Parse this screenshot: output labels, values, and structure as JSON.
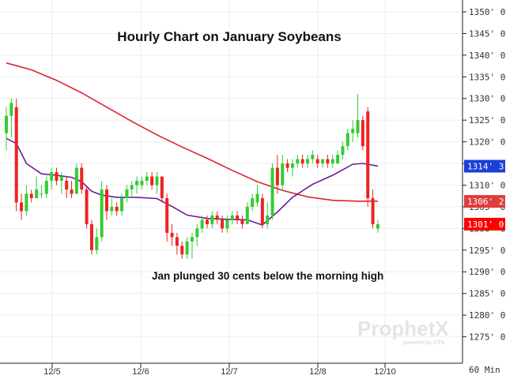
{
  "chart_data": {
    "type": "candlestick",
    "title": "Hourly Chart on January Soybeans",
    "annotation": "Jan plunged 30 cents below the morning high",
    "interval_label": "60 Min",
    "watermark": {
      "brand": "ProphetX",
      "sub": "powered by DTN"
    },
    "x_tick_labels": [
      "12/5",
      "12/6",
      "12/7",
      "12/8",
      "12/10"
    ],
    "y_axis": {
      "min": 1270,
      "max": 1352,
      "ticks": [
        {
          "value": 1350,
          "label": "1350' 0"
        },
        {
          "value": 1345,
          "label": "1345' 0"
        },
        {
          "value": 1340,
          "label": "1340' 0"
        },
        {
          "value": 1335,
          "label": "1335' 0"
        },
        {
          "value": 1330,
          "label": "1330' 0"
        },
        {
          "value": 1325,
          "label": "1325' 0"
        },
        {
          "value": 1320,
          "label": "1320' 0"
        },
        {
          "value": 1315,
          "label": "1315' 0"
        },
        {
          "value": 1310,
          "label": "1310' 0"
        },
        {
          "value": 1305,
          "label": "1305' 0"
        },
        {
          "value": 1300,
          "label": "1300' 0"
        },
        {
          "value": 1295,
          "label": "1295' 0"
        },
        {
          "value": 1290,
          "label": "1290' 0"
        },
        {
          "value": 1285,
          "label": "1285' 0"
        },
        {
          "value": 1280,
          "label": "1280' 0"
        },
        {
          "value": 1275,
          "label": "1275' 0"
        }
      ]
    },
    "price_badges": [
      {
        "label": "1314' 3",
        "value": 1314.375,
        "color": "#1a3fd6"
      },
      {
        "label": "1306' 2",
        "value": 1306.25,
        "color": "#e03c3c"
      },
      {
        "label": "1301' 0",
        "value": 1301.0,
        "color": "#ff0000"
      }
    ],
    "colors": {
      "up": "#33cc33",
      "down": "#ee2222",
      "ma_long": "#dd2233",
      "ma_short": "#6a1b9a"
    },
    "candles": [
      {
        "o": 1322,
        "h": 1328,
        "l": 1318,
        "c": 1326
      },
      {
        "o": 1326,
        "h": 1330,
        "l": 1321,
        "c": 1329
      },
      {
        "o": 1328,
        "h": 1330,
        "l": 1304,
        "c": 1306
      },
      {
        "o": 1306,
        "h": 1308,
        "l": 1302,
        "c": 1304
      },
      {
        "o": 1304,
        "h": 1310,
        "l": 1303,
        "c": 1308
      },
      {
        "o": 1308,
        "h": 1309,
        "l": 1306,
        "c": 1307
      },
      {
        "o": 1307,
        "h": 1312,
        "l": 1307,
        "c": 1309
      },
      {
        "o": 1308,
        "h": 1310,
        "l": 1307,
        "c": 1308
      },
      {
        "o": 1308,
        "h": 1312,
        "l": 1307,
        "c": 1311
      },
      {
        "o": 1311,
        "h": 1314,
        "l": 1309,
        "c": 1313
      },
      {
        "o": 1313,
        "h": 1314,
        "l": 1310,
        "c": 1311
      },
      {
        "o": 1311,
        "h": 1313,
        "l": 1308,
        "c": 1312
      },
      {
        "o": 1311,
        "h": 1312,
        "l": 1307,
        "c": 1309
      },
      {
        "o": 1309,
        "h": 1311,
        "l": 1307,
        "c": 1308
      },
      {
        "o": 1308,
        "h": 1315,
        "l": 1308,
        "c": 1314
      },
      {
        "o": 1314,
        "h": 1315,
        "l": 1308,
        "c": 1309
      },
      {
        "o": 1309,
        "h": 1310,
        "l": 1300,
        "c": 1301
      },
      {
        "o": 1301,
        "h": 1302,
        "l": 1294,
        "c": 1295
      },
      {
        "o": 1295,
        "h": 1300,
        "l": 1294,
        "c": 1298
      },
      {
        "o": 1298,
        "h": 1311,
        "l": 1297,
        "c": 1309
      },
      {
        "o": 1309,
        "h": 1310,
        "l": 1302,
        "c": 1304
      },
      {
        "o": 1304,
        "h": 1307,
        "l": 1303,
        "c": 1305
      },
      {
        "o": 1305,
        "h": 1306,
        "l": 1303,
        "c": 1304
      },
      {
        "o": 1304,
        "h": 1308,
        "l": 1303,
        "c": 1307
      },
      {
        "o": 1307,
        "h": 1310,
        "l": 1306,
        "c": 1309
      },
      {
        "o": 1309,
        "h": 1311,
        "l": 1307,
        "c": 1310
      },
      {
        "o": 1310,
        "h": 1312,
        "l": 1308,
        "c": 1311
      },
      {
        "o": 1310,
        "h": 1312,
        "l": 1309,
        "c": 1311
      },
      {
        "o": 1311,
        "h": 1313,
        "l": 1310,
        "c": 1312
      },
      {
        "o": 1312,
        "h": 1313,
        "l": 1309,
        "c": 1310
      },
      {
        "o": 1310,
        "h": 1313,
        "l": 1308,
        "c": 1312
      },
      {
        "o": 1312,
        "h": 1312,
        "l": 1306,
        "c": 1307
      },
      {
        "o": 1307,
        "h": 1308,
        "l": 1297,
        "c": 1299
      },
      {
        "o": 1299,
        "h": 1301,
        "l": 1296,
        "c": 1298
      },
      {
        "o": 1298,
        "h": 1299,
        "l": 1294,
        "c": 1296
      },
      {
        "o": 1296,
        "h": 1297,
        "l": 1293,
        "c": 1294
      },
      {
        "o": 1294,
        "h": 1298,
        "l": 1293,
        "c": 1297
      },
      {
        "o": 1297,
        "h": 1299,
        "l": 1293,
        "c": 1298
      },
      {
        "o": 1298,
        "h": 1301,
        "l": 1296,
        "c": 1300
      },
      {
        "o": 1300,
        "h": 1303,
        "l": 1299,
        "c": 1302
      },
      {
        "o": 1302,
        "h": 1303,
        "l": 1300,
        "c": 1301
      },
      {
        "o": 1301,
        "h": 1304,
        "l": 1300,
        "c": 1303
      },
      {
        "o": 1303,
        "h": 1304,
        "l": 1301,
        "c": 1302
      },
      {
        "o": 1302,
        "h": 1303,
        "l": 1299,
        "c": 1300
      },
      {
        "o": 1300,
        "h": 1303,
        "l": 1299,
        "c": 1302
      },
      {
        "o": 1302,
        "h": 1304,
        "l": 1301,
        "c": 1303
      },
      {
        "o": 1303,
        "h": 1304,
        "l": 1301,
        "c": 1302
      },
      {
        "o": 1302,
        "h": 1303,
        "l": 1300,
        "c": 1301
      },
      {
        "o": 1301,
        "h": 1306,
        "l": 1301,
        "c": 1305
      },
      {
        "o": 1305,
        "h": 1308,
        "l": 1304,
        "c": 1307
      },
      {
        "o": 1306,
        "h": 1310,
        "l": 1305,
        "c": 1308
      },
      {
        "o": 1307,
        "h": 1308,
        "l": 1300,
        "c": 1301
      },
      {
        "o": 1301,
        "h": 1306,
        "l": 1300,
        "c": 1303
      },
      {
        "o": 1303,
        "h": 1315,
        "l": 1302,
        "c": 1314
      },
      {
        "o": 1314,
        "h": 1317,
        "l": 1308,
        "c": 1310
      },
      {
        "o": 1310,
        "h": 1317,
        "l": 1309,
        "c": 1315
      },
      {
        "o": 1315,
        "h": 1316,
        "l": 1313,
        "c": 1314
      },
      {
        "o": 1314,
        "h": 1316,
        "l": 1312,
        "c": 1315
      },
      {
        "o": 1315,
        "h": 1317,
        "l": 1314,
        "c": 1316
      },
      {
        "o": 1316,
        "h": 1317,
        "l": 1314,
        "c": 1315
      },
      {
        "o": 1315,
        "h": 1317,
        "l": 1314,
        "c": 1316
      },
      {
        "o": 1316,
        "h": 1318,
        "l": 1315,
        "c": 1317
      },
      {
        "o": 1316,
        "h": 1317,
        "l": 1314,
        "c": 1315
      },
      {
        "o": 1315,
        "h": 1316,
        "l": 1314,
        "c": 1316
      },
      {
        "o": 1316,
        "h": 1317,
        "l": 1314,
        "c": 1315
      },
      {
        "o": 1315,
        "h": 1317,
        "l": 1314,
        "c": 1316
      },
      {
        "o": 1315,
        "h": 1318,
        "l": 1315,
        "c": 1317
      },
      {
        "o": 1317,
        "h": 1320,
        "l": 1316,
        "c": 1319
      },
      {
        "o": 1319,
        "h": 1323,
        "l": 1318,
        "c": 1322
      },
      {
        "o": 1322,
        "h": 1325,
        "l": 1320,
        "c": 1323
      },
      {
        "o": 1322,
        "h": 1331,
        "l": 1321,
        "c": 1325
      },
      {
        "o": 1325,
        "h": 1326,
        "l": 1318,
        "c": 1319
      },
      {
        "o": 1327,
        "h": 1328,
        "l": 1305,
        "c": 1307
      },
      {
        "o": 1307,
        "h": 1309,
        "l": 1300,
        "c": 1301
      },
      {
        "o": 1300,
        "h": 1302,
        "l": 1299,
        "c": 1301
      }
    ],
    "ma_long": [
      [
        0,
        1338.2
      ],
      [
        5,
        1336.6
      ],
      [
        10,
        1334.2
      ],
      [
        15,
        1331.3
      ],
      [
        20,
        1328.0
      ],
      [
        25,
        1324.7
      ],
      [
        30,
        1321.6
      ],
      [
        35,
        1318.8
      ],
      [
        40,
        1316.2
      ],
      [
        45,
        1313.4
      ],
      [
        50,
        1310.8
      ],
      [
        55,
        1308.8
      ],
      [
        60,
        1307.3
      ],
      [
        65,
        1306.5
      ],
      [
        70,
        1306.3
      ],
      [
        74,
        1306.3
      ]
    ],
    "ma_short": [
      [
        0,
        1320.8
      ],
      [
        2,
        1319.6
      ],
      [
        4,
        1315.0
      ],
      [
        7,
        1312.6
      ],
      [
        10,
        1312.3
      ],
      [
        13,
        1311.8
      ],
      [
        15,
        1310.8
      ],
      [
        17,
        1308.6
      ],
      [
        19,
        1307.7
      ],
      [
        22,
        1307.2
      ],
      [
        26,
        1307.2
      ],
      [
        30,
        1306.9
      ],
      [
        33,
        1305.1
      ],
      [
        36,
        1303.1
      ],
      [
        40,
        1302.3
      ],
      [
        44,
        1302.1
      ],
      [
        48,
        1302.0
      ],
      [
        51,
        1300.8
      ],
      [
        54,
        1303.8
      ],
      [
        57,
        1307.2
      ],
      [
        61,
        1310.2
      ],
      [
        65,
        1312.3
      ],
      [
        69,
        1314.8
      ],
      [
        71,
        1315.0
      ],
      [
        74,
        1314.4
      ]
    ]
  }
}
